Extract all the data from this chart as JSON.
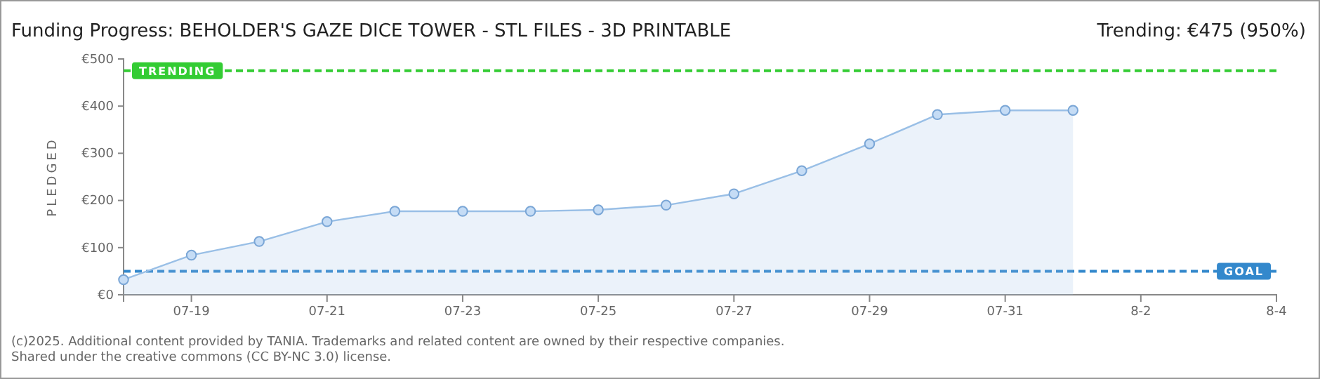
{
  "chart_data": {
    "type": "area",
    "title": "Funding Progress: BEHOLDER'S GAZE DICE TOWER - STL FILES - 3D PRINTABLE",
    "ylabel": "PLEDGED",
    "annotations": [
      "Trending: €475 (950%)",
      "(c)2025. Additional content provided by TANIA. Trademarks and related content are owned by their respective companies.",
      "Shared under the creative commons (CC BY-NC 3.0) license."
    ],
    "x": [
      "2025-07-18",
      "2025-07-19",
      "2025-07-20",
      "2025-07-21",
      "2025-07-22",
      "2025-07-23",
      "2025-07-24",
      "2025-07-25",
      "2025-07-26",
      "2025-07-27",
      "2025-07-28",
      "2025-07-29",
      "2025-07-30",
      "2025-07-31",
      "2025-08-01"
    ],
    "series": [
      {
        "color": "#99bfe6",
        "values": [
          32,
          84,
          113,
          155,
          177,
          177,
          177,
          180,
          190,
          214,
          263,
          320,
          382,
          391,
          391
        ]
      }
    ],
    "xlim": [
      "2025-07-18",
      "2025-08-04"
    ],
    "xticks": [
      {
        "value": "2025-07-19",
        "label": "07-19"
      },
      {
        "value": "2025-07-21",
        "label": "07-21"
      },
      {
        "value": "2025-07-23",
        "label": "07-23"
      },
      {
        "value": "2025-07-25",
        "label": "07-25"
      },
      {
        "value": "2025-07-27",
        "label": "07-27"
      },
      {
        "value": "2025-07-29",
        "label": "07-29"
      },
      {
        "value": "2025-07-31",
        "label": "07-31"
      },
      {
        "value": "2025-08-02",
        "label": "8-2"
      },
      {
        "value": "2025-08-04",
        "label": "8-4"
      }
    ],
    "ylim": [
      0,
      500
    ],
    "yticks": [
      {
        "value": 0,
        "label": "€0"
      },
      {
        "value": 100,
        "label": "€100"
      },
      {
        "value": 200,
        "label": "€200"
      },
      {
        "value": 300,
        "label": "€300"
      },
      {
        "value": 400,
        "label": "€400"
      },
      {
        "value": 500,
        "label": "€500"
      }
    ],
    "ref_lines": [
      {
        "axis": "y",
        "value": 475,
        "label": "TRENDING",
        "color": "#33cc33",
        "line_style": "dashed"
      },
      {
        "axis": "y",
        "value": 50,
        "label": "GOAL",
        "color": "#3388cc",
        "line_style": "dashed"
      }
    ],
    "marker": "circle",
    "grid": false
  }
}
